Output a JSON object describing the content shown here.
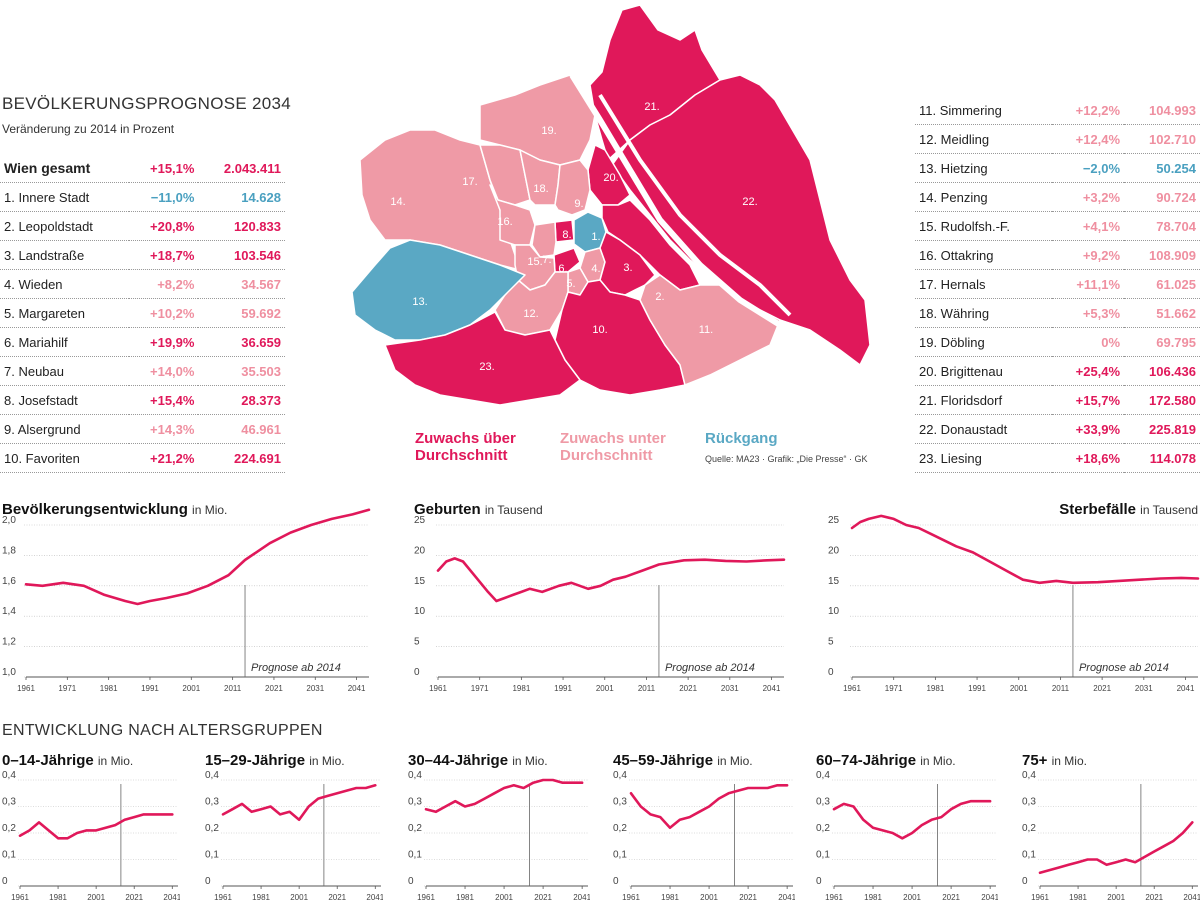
{
  "header": {
    "title": "BEVÖLKERUNGSPROGNOSE 2034",
    "subtitle": "Veränderung zu 2014 in Prozent"
  },
  "colors": {
    "high": "#e0185a",
    "low": "#ef9aa6",
    "negative": "#5aa8c4"
  },
  "table_left": [
    {
      "name": "Wien gesamt",
      "pct": "+15,1%",
      "abs": "2.043.411",
      "cat": "high",
      "bold": true
    },
    {
      "name": "1. Innere Stadt",
      "pct": "−11,0%",
      "abs": "14.628",
      "cat": "neg"
    },
    {
      "name": "2. Leopoldstadt",
      "pct": "+20,8%",
      "abs": "120.833",
      "cat": "high"
    },
    {
      "name": "3. Landstraße",
      "pct": "+18,7%",
      "abs": "103.546",
      "cat": "high"
    },
    {
      "name": "4. Wieden",
      "pct": "+8,2%",
      "abs": "34.567",
      "cat": "low"
    },
    {
      "name": "5. Margareten",
      "pct": "+10,2%",
      "abs": "59.692",
      "cat": "low"
    },
    {
      "name": "6. Mariahilf",
      "pct": "+19,9%",
      "abs": "36.659",
      "cat": "high"
    },
    {
      "name": "7. Neubau",
      "pct": "+14,0%",
      "abs": "35.503",
      "cat": "low"
    },
    {
      "name": "8. Josefstadt",
      "pct": "+15,4%",
      "abs": "28.373",
      "cat": "high"
    },
    {
      "name": "9. Alsergrund",
      "pct": "+14,3%",
      "abs": "46.961",
      "cat": "low"
    },
    {
      "name": "10. Favoriten",
      "pct": "+21,2%",
      "abs": "224.691",
      "cat": "high"
    }
  ],
  "table_right": [
    {
      "name": "11. Simmering",
      "pct": "+12,2%",
      "abs": "104.993",
      "cat": "low"
    },
    {
      "name": "12. Meidling",
      "pct": "+12,4%",
      "abs": "102.710",
      "cat": "low"
    },
    {
      "name": "13. Hietzing",
      "pct": "−2,0%",
      "abs": "50.254",
      "cat": "neg"
    },
    {
      "name": "14. Penzing",
      "pct": "+3,2%",
      "abs": "90.724",
      "cat": "low"
    },
    {
      "name": "15. Rudolfsh.-F.",
      "pct": "+4,1%",
      "abs": "78.704",
      "cat": "low"
    },
    {
      "name": "16. Ottakring",
      "pct": "+9,2%",
      "abs": "108.909",
      "cat": "low"
    },
    {
      "name": "17. Hernals",
      "pct": "+11,1%",
      "abs": "61.025",
      "cat": "low"
    },
    {
      "name": "18. Währing",
      "pct": "+5,3%",
      "abs": "51.662",
      "cat": "low"
    },
    {
      "name": "19. Döbling",
      "pct": "0%",
      "abs": "69.795",
      "cat": "low"
    },
    {
      "name": "20. Brigittenau",
      "pct": "+25,4%",
      "abs": "106.436",
      "cat": "high"
    },
    {
      "name": "21. Floridsdorf",
      "pct": "+15,7%",
      "abs": "172.580",
      "cat": "high"
    },
    {
      "name": "22. Donaustadt",
      "pct": "+33,9%",
      "abs": "225.819",
      "cat": "high"
    },
    {
      "name": "23. Liesing",
      "pct": "+18,6%",
      "abs": "114.078",
      "cat": "high"
    }
  ],
  "map": {
    "labels": [
      "1.",
      "2.",
      "3.",
      "4.",
      "5.",
      "6.",
      "7.",
      "8.",
      "9.",
      "10.",
      "11.",
      "12.",
      "13.",
      "14.",
      "15.",
      "16.",
      "17.",
      "18.",
      "19.",
      "20.",
      "21.",
      "22.",
      "23."
    ]
  },
  "legend": {
    "high": "Zuwachs über Durchschnitt",
    "high_l1": "Zuwachs über",
    "high_l2": "Durchschnitt",
    "low_l1": "Zuwachs unter",
    "low_l2": "Durchschnitt",
    "neg": "Rückgang",
    "source": "Quelle: MA23 · Grafik: „Die Presse“ · GK"
  },
  "section_title": "ENTWICKLUNG NACH ALTERSGRUPPEN",
  "chart_data": [
    {
      "id": "bev",
      "type": "line",
      "title": "Bevölkerungsentwicklung",
      "unit": "in Mio.",
      "ylim": [
        1.0,
        2.0
      ],
      "yticks": [
        "1,0",
        "1,2",
        "1,4",
        "1,6",
        "1,8",
        "2,0"
      ],
      "ytick_values": [
        1.0,
        1.2,
        1.4,
        1.6,
        1.8,
        2.0
      ],
      "xticks": [
        "1961",
        "1971",
        "1981",
        "1991",
        "2001",
        "2011",
        "2021",
        "2031",
        "2041"
      ],
      "xlim": [
        1961,
        2044
      ],
      "prognose_year": 2014,
      "annotation": "Prognose ab 2014",
      "x": [
        1961,
        1965,
        1970,
        1975,
        1980,
        1985,
        1988,
        1991,
        1995,
        2000,
        2005,
        2010,
        2014,
        2020,
        2025,
        2030,
        2035,
        2040,
        2044
      ],
      "values": [
        1.61,
        1.6,
        1.62,
        1.6,
        1.54,
        1.5,
        1.48,
        1.5,
        1.52,
        1.55,
        1.6,
        1.67,
        1.77,
        1.88,
        1.95,
        2.0,
        2.04,
        2.07,
        2.1
      ]
    },
    {
      "id": "geb",
      "type": "line",
      "title": "Geburten",
      "unit": "in Tausend",
      "ylim": [
        0,
        25
      ],
      "yticks": [
        "0",
        "5",
        "10",
        "15",
        "20",
        "25"
      ],
      "ytick_values": [
        0,
        5,
        10,
        15,
        20,
        25
      ],
      "xticks": [
        "1961",
        "1971",
        "1981",
        "1991",
        "2001",
        "2011",
        "2021",
        "2031",
        "2041"
      ],
      "xlim": [
        1961,
        2044
      ],
      "prognose_year": 2014,
      "annotation": "Prognose ab 2014",
      "x": [
        1961,
        1963,
        1965,
        1967,
        1970,
        1973,
        1975,
        1977,
        1979,
        1981,
        1983,
        1986,
        1990,
        1993,
        1997,
        2000,
        2003,
        2006,
        2010,
        2014,
        2020,
        2025,
        2030,
        2035,
        2040,
        2044
      ],
      "values": [
        17.5,
        19.0,
        19.5,
        19.0,
        16.5,
        14.0,
        12.5,
        13.0,
        13.5,
        14.0,
        14.5,
        14.0,
        15.0,
        15.5,
        14.5,
        15.0,
        16.0,
        16.5,
        17.5,
        18.5,
        19.2,
        19.3,
        19.1,
        19.0,
        19.2,
        19.3
      ]
    },
    {
      "id": "ste",
      "type": "line",
      "title": "Sterbefälle",
      "unit": "in Tausend",
      "ylim": [
        0,
        25
      ],
      "yticks": [
        "0",
        "5",
        "10",
        "15",
        "20",
        "25"
      ],
      "ytick_values": [
        0,
        5,
        10,
        15,
        20,
        25
      ],
      "xticks": [
        "1961",
        "1971",
        "1981",
        "1991",
        "2001",
        "2011",
        "2021",
        "2031",
        "2041"
      ],
      "xlim": [
        1961,
        2044
      ],
      "prognose_year": 2014,
      "annotation": "Prognose ab 2014",
      "x": [
        1961,
        1963,
        1965,
        1968,
        1971,
        1974,
        1977,
        1980,
        1983,
        1986,
        1990,
        1994,
        1998,
        2002,
        2006,
        2010,
        2014,
        2020,
        2025,
        2030,
        2035,
        2040,
        2044
      ],
      "values": [
        24.5,
        25.5,
        26.0,
        26.5,
        26.0,
        25.0,
        24.5,
        23.5,
        22.5,
        21.5,
        20.5,
        19.0,
        17.5,
        16.0,
        15.5,
        15.8,
        15.5,
        15.6,
        15.8,
        16.0,
        16.2,
        16.3,
        16.2
      ]
    },
    {
      "id": "a0014",
      "type": "line",
      "title": "0–14-Jährige",
      "unit": "in Mio.",
      "ylim": [
        0,
        0.4
      ],
      "yticks": [
        "0",
        "0,1",
        "0,2",
        "0,3",
        "0,4"
      ],
      "ytick_values": [
        0,
        0.1,
        0.2,
        0.3,
        0.4
      ],
      "xticks": [
        "1961",
        "1981",
        "2001",
        "2021",
        "2041"
      ],
      "xlim": [
        1961,
        2044
      ],
      "prognose_year": 2014,
      "x": [
        1961,
        1966,
        1971,
        1976,
        1981,
        1986,
        1991,
        1996,
        2001,
        2006,
        2011,
        2016,
        2021,
        2026,
        2031,
        2036,
        2041
      ],
      "values": [
        0.19,
        0.21,
        0.24,
        0.21,
        0.18,
        0.18,
        0.2,
        0.21,
        0.21,
        0.22,
        0.23,
        0.25,
        0.26,
        0.27,
        0.27,
        0.27,
        0.27
      ]
    },
    {
      "id": "a1529",
      "type": "line",
      "title": "15–29-Jährige",
      "unit": "in Mio.",
      "ylim": [
        0,
        0.4
      ],
      "yticks": [
        "0",
        "0,1",
        "0,2",
        "0,3",
        "0,4"
      ],
      "ytick_values": [
        0,
        0.1,
        0.2,
        0.3,
        0.4
      ],
      "xticks": [
        "1961",
        "1981",
        "2001",
        "2021",
        "2041"
      ],
      "xlim": [
        1961,
        2044
      ],
      "prognose_year": 2014,
      "x": [
        1961,
        1966,
        1971,
        1976,
        1981,
        1986,
        1991,
        1996,
        2001,
        2006,
        2011,
        2016,
        2021,
        2026,
        2031,
        2036,
        2041
      ],
      "values": [
        0.27,
        0.29,
        0.31,
        0.28,
        0.29,
        0.3,
        0.27,
        0.28,
        0.25,
        0.3,
        0.33,
        0.34,
        0.35,
        0.36,
        0.37,
        0.37,
        0.38
      ]
    },
    {
      "id": "a3044",
      "type": "line",
      "title": "30–44-Jährige",
      "unit": "in Mio.",
      "ylim": [
        0,
        0.4
      ],
      "yticks": [
        "0",
        "0,1",
        "0,2",
        "0,3",
        "0,4"
      ],
      "ytick_values": [
        0,
        0.1,
        0.2,
        0.3,
        0.4
      ],
      "xticks": [
        "1961",
        "1981",
        "2001",
        "2021",
        "2041"
      ],
      "xlim": [
        1961,
        2044
      ],
      "prognose_year": 2014,
      "x": [
        1961,
        1966,
        1971,
        1976,
        1981,
        1986,
        1991,
        1996,
        2001,
        2006,
        2011,
        2016,
        2021,
        2026,
        2031,
        2036,
        2041
      ],
      "values": [
        0.29,
        0.28,
        0.3,
        0.32,
        0.3,
        0.31,
        0.33,
        0.35,
        0.37,
        0.38,
        0.37,
        0.39,
        0.4,
        0.4,
        0.39,
        0.39,
        0.39
      ]
    },
    {
      "id": "a4559",
      "type": "line",
      "title": "45–59-Jährige",
      "unit": "in Mio.",
      "ylim": [
        0,
        0.4
      ],
      "yticks": [
        "0",
        "0,1",
        "0,2",
        "0,3",
        "0,4"
      ],
      "ytick_values": [
        0,
        0.1,
        0.2,
        0.3,
        0.4
      ],
      "xticks": [
        "1961",
        "1981",
        "2001",
        "2021",
        "2041"
      ],
      "xlim": [
        1961,
        2044
      ],
      "prognose_year": 2014,
      "x": [
        1961,
        1966,
        1971,
        1976,
        1981,
        1986,
        1991,
        1996,
        2001,
        2006,
        2011,
        2016,
        2021,
        2026,
        2031,
        2036,
        2041
      ],
      "values": [
        0.35,
        0.3,
        0.27,
        0.26,
        0.22,
        0.25,
        0.26,
        0.28,
        0.3,
        0.33,
        0.35,
        0.36,
        0.37,
        0.37,
        0.37,
        0.38,
        0.38
      ]
    },
    {
      "id": "a6074",
      "type": "line",
      "title": "60–74-Jährige",
      "unit": "in Mio.",
      "ylim": [
        0,
        0.4
      ],
      "yticks": [
        "0",
        "0,1",
        "0,2",
        "0,3",
        "0,4"
      ],
      "ytick_values": [
        0,
        0.1,
        0.2,
        0.3,
        0.4
      ],
      "xticks": [
        "1961",
        "1981",
        "2001",
        "2021",
        "2041"
      ],
      "xlim": [
        1961,
        2044
      ],
      "prognose_year": 2014,
      "x": [
        1961,
        1966,
        1971,
        1976,
        1981,
        1986,
        1991,
        1996,
        2001,
        2006,
        2011,
        2016,
        2021,
        2026,
        2031,
        2036,
        2041
      ],
      "values": [
        0.29,
        0.31,
        0.3,
        0.25,
        0.22,
        0.21,
        0.2,
        0.18,
        0.2,
        0.23,
        0.25,
        0.26,
        0.29,
        0.31,
        0.32,
        0.32,
        0.32
      ]
    },
    {
      "id": "a75",
      "type": "line",
      "title": "75+",
      "unit": "in Mio.",
      "ylim": [
        0,
        0.4
      ],
      "yticks": [
        "0",
        "0,1",
        "0,2",
        "0,3",
        "0,4"
      ],
      "ytick_values": [
        0,
        0.1,
        0.2,
        0.3,
        0.4
      ],
      "xticks": [
        "1961",
        "1981",
        "2001",
        "2021",
        "2041"
      ],
      "xlim": [
        1961,
        2044
      ],
      "prognose_year": 2014,
      "x": [
        1961,
        1966,
        1971,
        1976,
        1981,
        1986,
        1991,
        1996,
        2001,
        2006,
        2011,
        2016,
        2021,
        2026,
        2031,
        2036,
        2041
      ],
      "values": [
        0.05,
        0.06,
        0.07,
        0.08,
        0.09,
        0.1,
        0.1,
        0.08,
        0.09,
        0.1,
        0.09,
        0.11,
        0.13,
        0.15,
        0.17,
        0.2,
        0.24
      ]
    }
  ]
}
